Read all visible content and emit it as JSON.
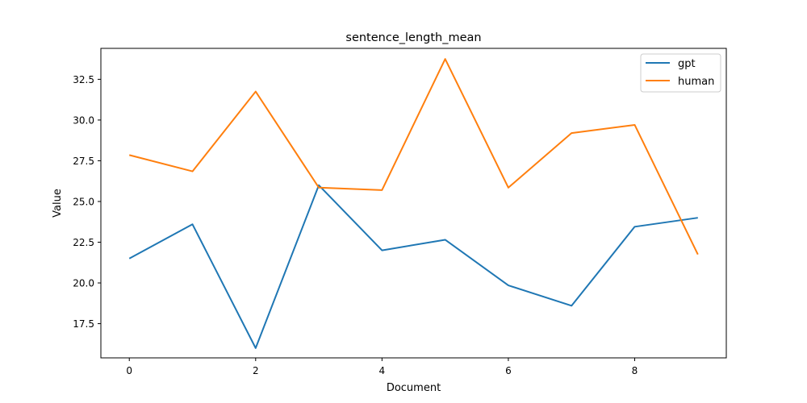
{
  "chart_data": {
    "type": "line",
    "title": "sentence_length_mean",
    "xlabel": "Document",
    "ylabel": "Value",
    "x": [
      0,
      1,
      2,
      3,
      4,
      5,
      6,
      7,
      8,
      9
    ],
    "xlim": [
      -0.45,
      9.45
    ],
    "ylim": [
      15.4,
      34.4
    ],
    "xticks": [
      0,
      2,
      4,
      6,
      8
    ],
    "xtick_labels": [
      "0",
      "2",
      "4",
      "6",
      "8"
    ],
    "yticks": [
      17.5,
      20.0,
      22.5,
      25.0,
      27.5,
      30.0,
      32.5
    ],
    "ytick_labels": [
      "17.5",
      "20.0",
      "22.5",
      "25.0",
      "27.5",
      "30.0",
      "32.5"
    ],
    "grid": false,
    "legend_position": "top-right",
    "series": [
      {
        "name": "gpt",
        "color": "#1f77b4",
        "values": [
          21.5,
          23.6,
          16.0,
          26.0,
          22.0,
          22.65,
          19.85,
          18.6,
          23.45,
          24.0
        ]
      },
      {
        "name": "human",
        "color": "#ff7f0e",
        "values": [
          27.85,
          26.85,
          31.75,
          25.85,
          25.7,
          33.75,
          25.85,
          29.2,
          29.7,
          21.75
        ]
      }
    ]
  }
}
